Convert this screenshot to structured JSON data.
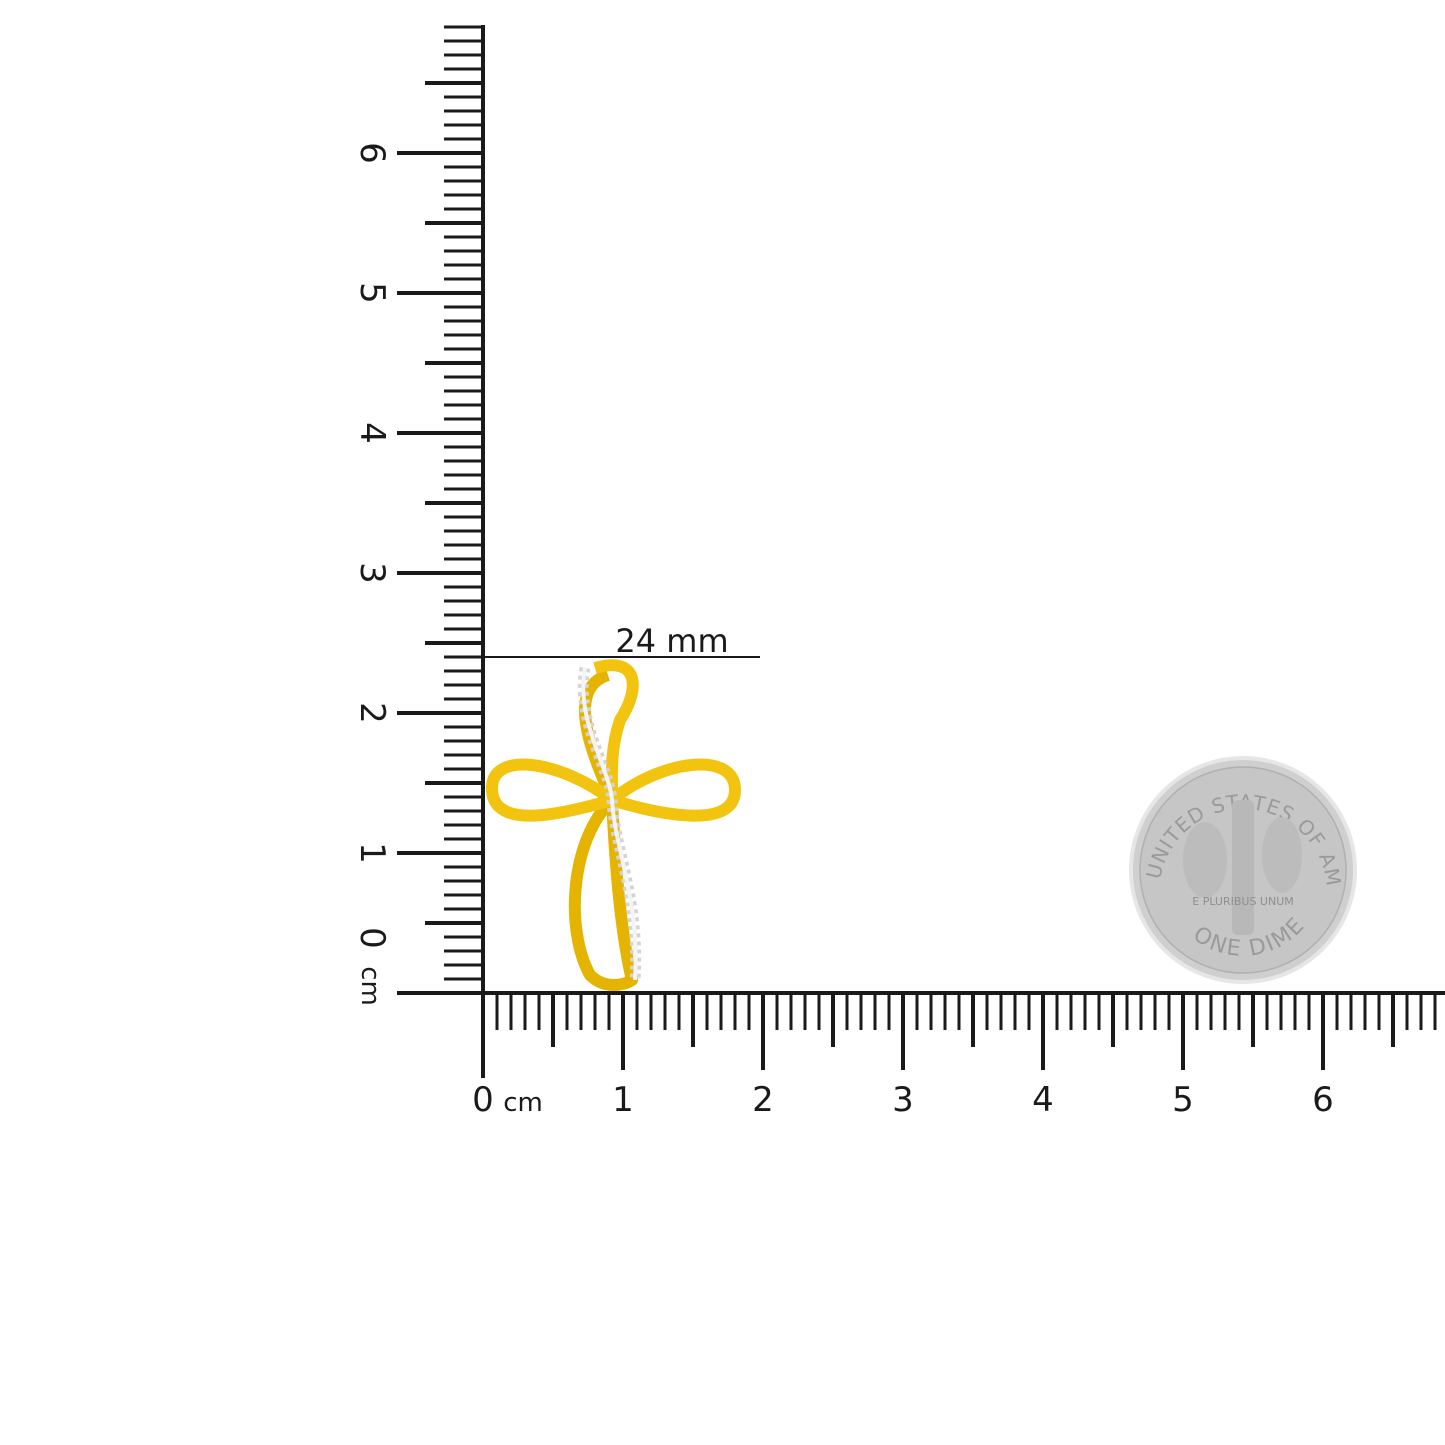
{
  "vertical_ruler": {
    "labels": [
      "0",
      "1",
      "2",
      "3",
      "4",
      "5",
      "6"
    ],
    "unit": "cm"
  },
  "horizontal_ruler": {
    "labels": [
      "0",
      "1",
      "2",
      "3",
      "4",
      "5",
      "6"
    ],
    "unit": "cm"
  },
  "dimension": {
    "label": "24 mm",
    "value_mm": 24
  },
  "product": {
    "colors": {
      "gold": "#f2c40f",
      "gold_dark": "#d9a400",
      "stones": "#e4e4e4"
    }
  },
  "coin": {
    "top_text": "UNITED STATES OF AMERICA",
    "bottom_text": "ONE DIME",
    "motto": "E PLURIBUS UNUM",
    "color": "#c9c9c9"
  },
  "colors": {
    "ruler": "#1a1a1a",
    "background": "#ffffff"
  }
}
